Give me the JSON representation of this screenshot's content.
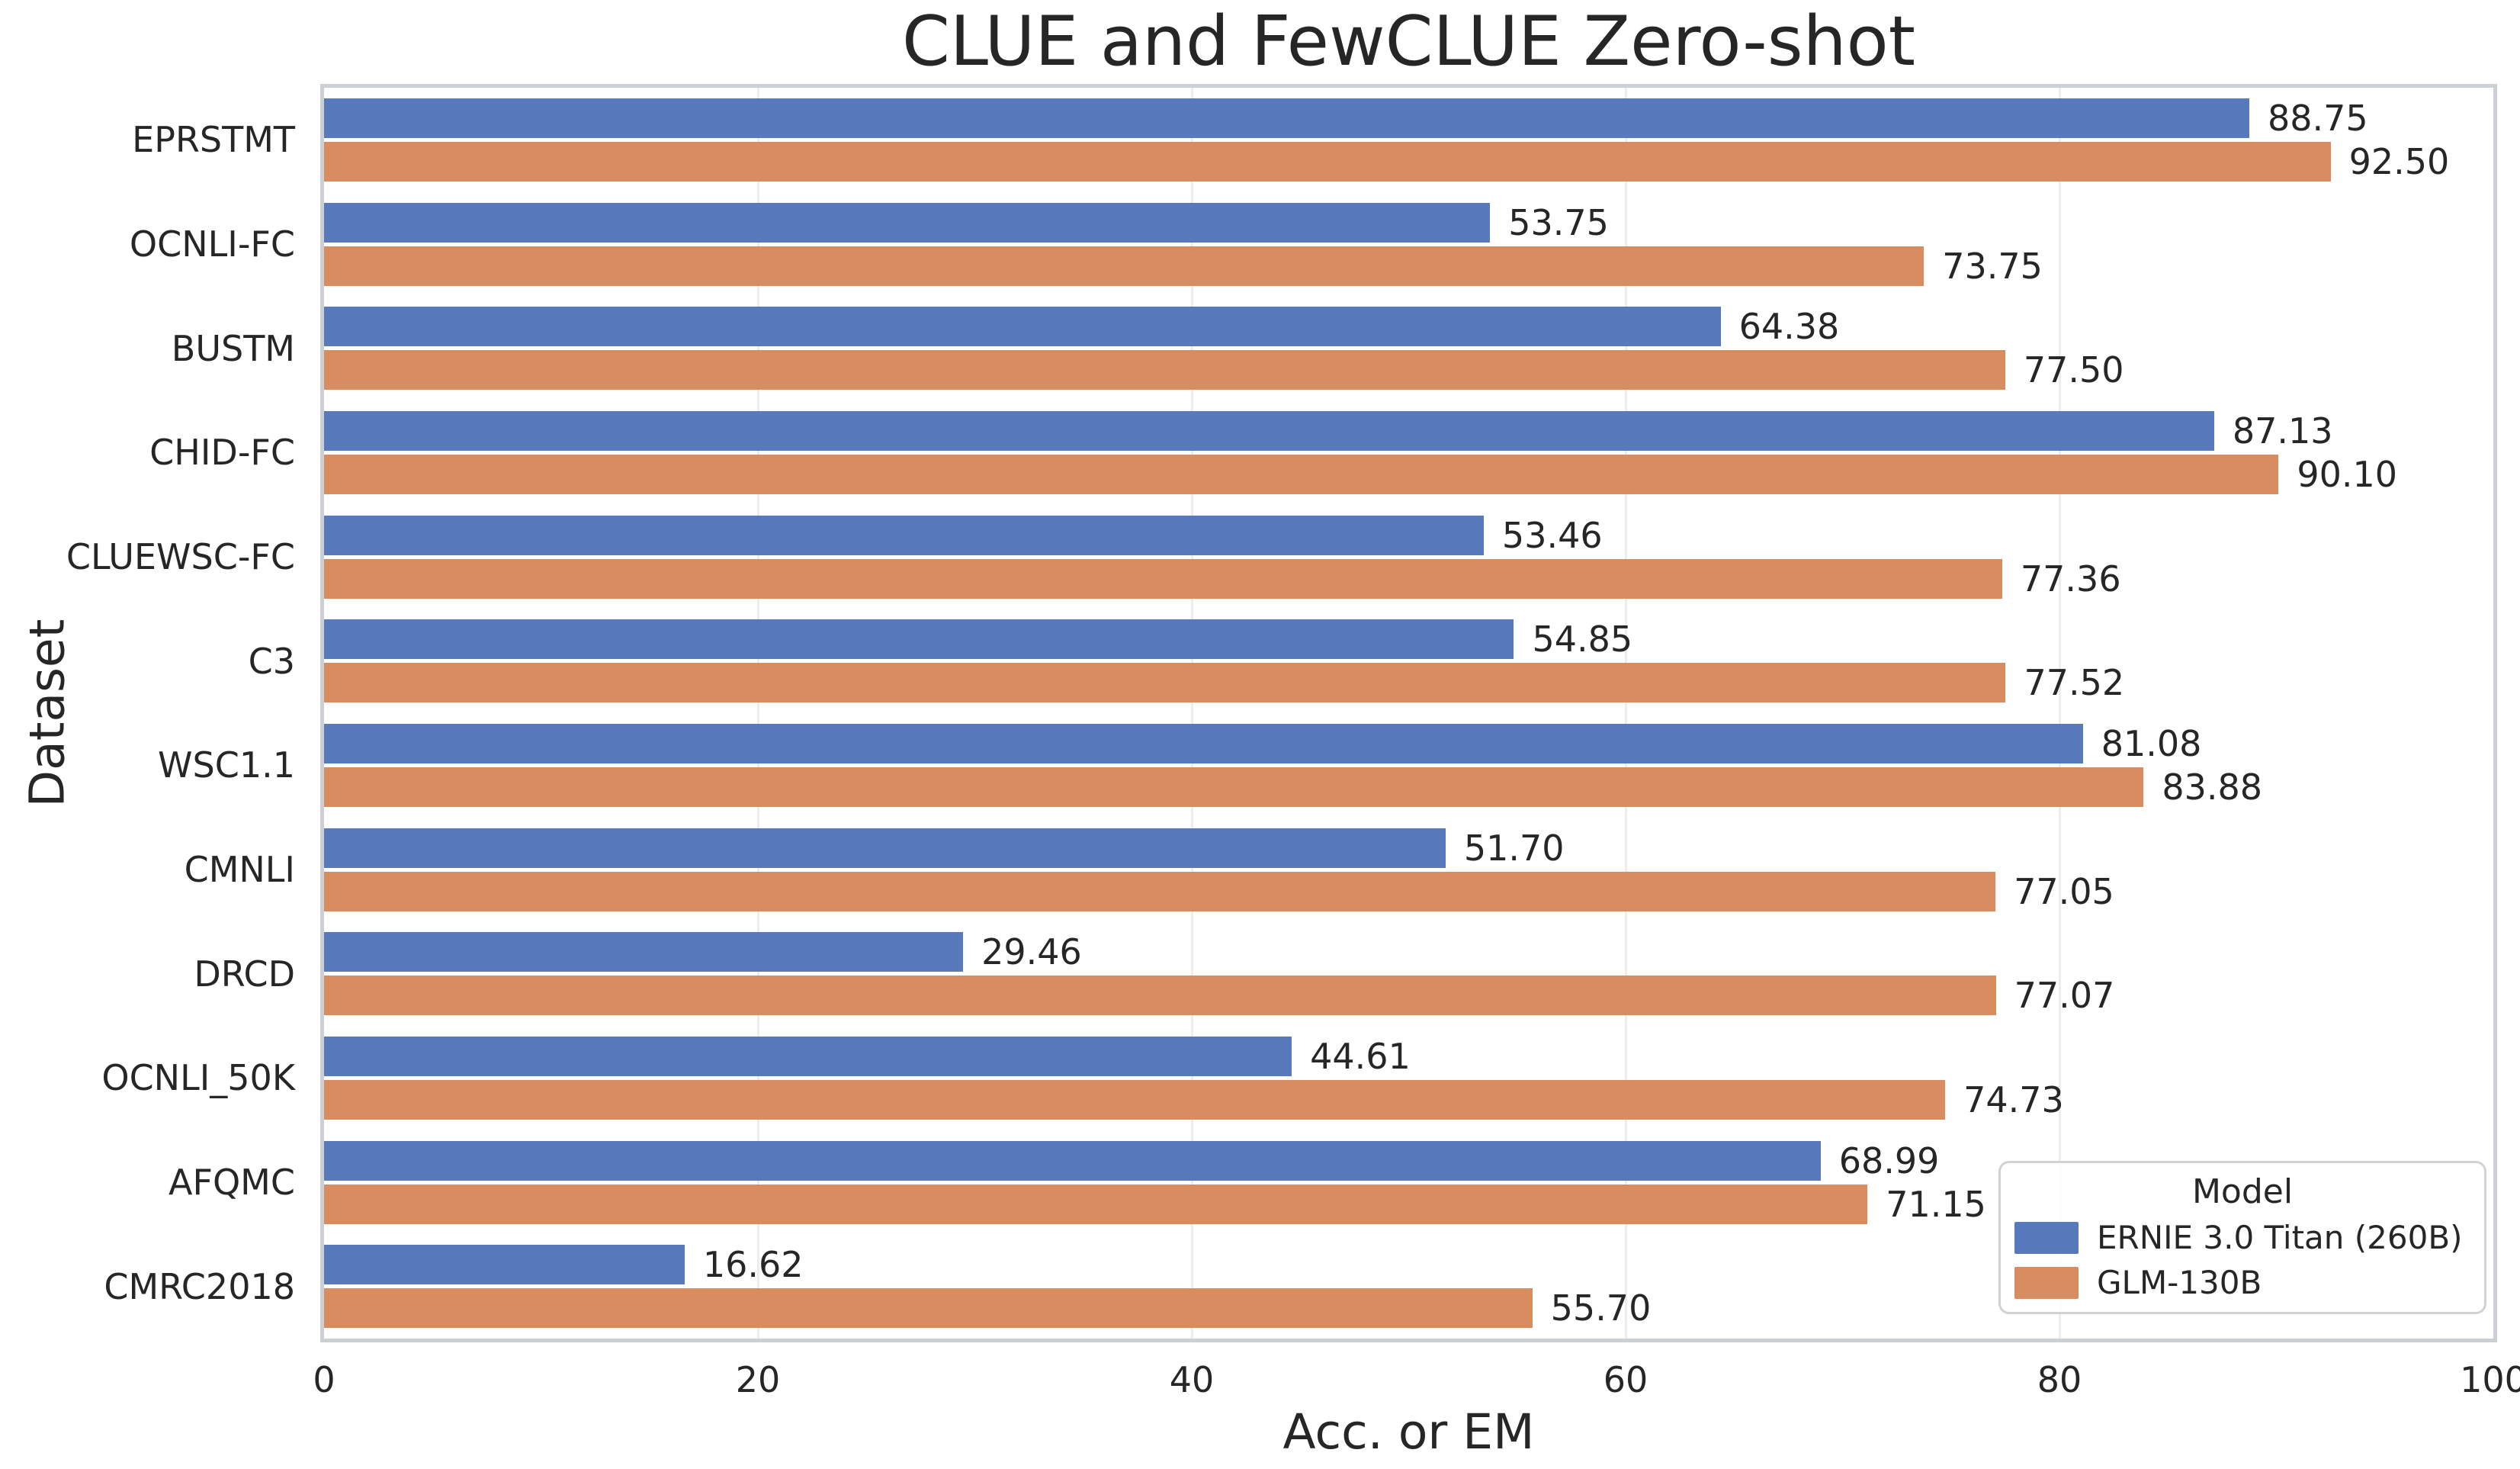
{
  "figure": {
    "title": "CLUE and FewCLUE Zero-shot"
  },
  "chart_data": {
    "type": "bar",
    "orientation": "horizontal",
    "title": "CLUE and FewCLUE Zero-shot",
    "xlabel": "Acc. or EM",
    "ylabel": "Dataset",
    "xlim": [
      0,
      100
    ],
    "xticks": [
      "0",
      "20",
      "40",
      "60",
      "80",
      "100"
    ],
    "grid": "vertical-gridlines-at-xticks",
    "value_label_format": "%.2f",
    "legend": {
      "title": "Model",
      "position": "lower right"
    },
    "categories": [
      "EPRSTMT",
      "OCNLI-FC",
      "BUSTM",
      "CHID-FC",
      "CLUEWSC-FC",
      "C3",
      "WSC1.1",
      "CMNLI",
      "DRCD",
      "OCNLI_50K",
      "AFQMC",
      "CMRC2018"
    ],
    "series": [
      {
        "name": "ERNIE 3.0 Titan (260B)",
        "color": "#587abd",
        "values": [
          88.75,
          53.75,
          64.38,
          87.13,
          53.46,
          54.85,
          81.08,
          51.7,
          29.46,
          44.61,
          68.99,
          16.62
        ]
      },
      {
        "name": "GLM-130B",
        "color": "#d98c5f",
        "values": [
          92.5,
          73.75,
          77.5,
          90.1,
          77.36,
          77.52,
          83.88,
          77.05,
          77.07,
          74.73,
          71.15,
          55.7
        ]
      }
    ]
  },
  "colors": {
    "text": "#262626",
    "spine": "#ccd0d4",
    "gridline": "#ededed",
    "background": "#ffffff",
    "legend_border": "#d2d2d2"
  }
}
